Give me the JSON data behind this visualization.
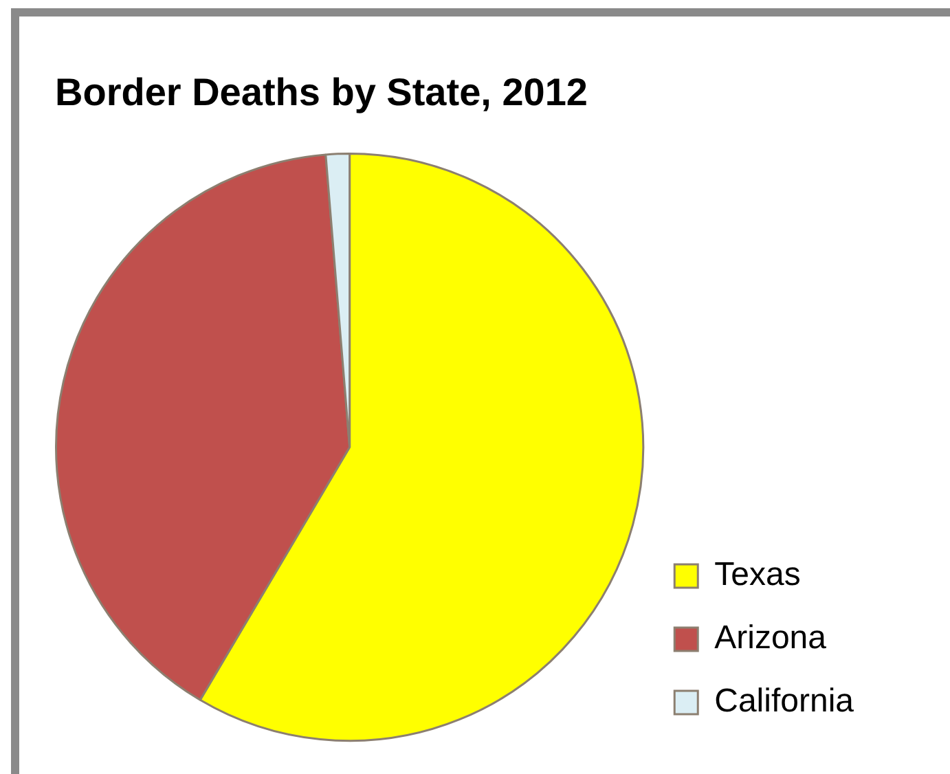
{
  "chart_data": {
    "type": "pie",
    "title": "Border Deaths by State, 2012",
    "categories": [
      "Texas",
      "Arizona",
      "California"
    ],
    "values": [
      58.5,
      40.2,
      1.3
    ],
    "colors": [
      "#ffff00",
      "#c0504d",
      "#dbeef4"
    ],
    "legend": "bottom right"
  }
}
